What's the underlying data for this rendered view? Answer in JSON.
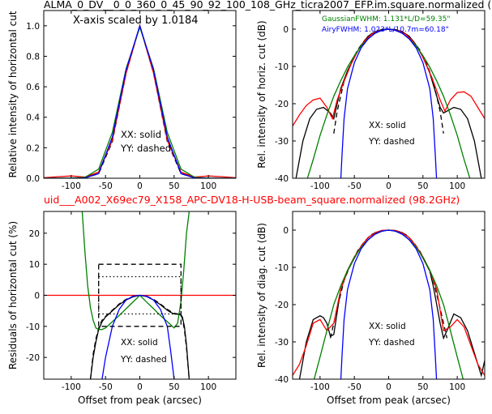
{
  "figure": {
    "title": "ALMA_0_DV__0_0_360_0_45_90_92_100_108_GHz_ticra2007_EFP.im.square.normalized (",
    "subtitle": "uid___A002_X69ec79_X158_APC-DV18-H-USB-beam_square.normalized (98.2GHz)",
    "subtitle_color": "#ff0000",
    "scale_note": "X-axis scaled by 1.0184",
    "fwhm_gaussian": "GaussianFWHM: 1.131*L/D=59.35\"",
    "fwhm_airy": "AiryFWHM: 1.023*L/10.7m=60.18\"",
    "legend_solid": "XX: solid",
    "legend_dashed": "YY: dashed"
  },
  "colors": {
    "measured": "#000000",
    "model": "#ff0000",
    "gaussian": "#008000",
    "airy": "#0000ff"
  },
  "chart_data": [
    {
      "type": "line",
      "panel": "top-left",
      "xlabel": "",
      "ylabel": "Relative intensity of horizontal cut",
      "xlim": [
        -140,
        140
      ],
      "ylim": [
        0,
        1.1
      ],
      "xticks": [
        -100,
        -50,
        0,
        50,
        100
      ],
      "yticks": [
        0.0,
        0.2,
        0.4,
        0.6,
        0.8,
        1.0
      ],
      "ytick_labels": [
        "0.0",
        "0.2",
        "0.4",
        "0.6",
        "0.8",
        "1.0"
      ],
      "series": [
        {
          "color": "black",
          "style": "solid",
          "x": [
            -140,
            -100,
            -80,
            -60,
            -40,
            -20,
            0,
            20,
            40,
            60,
            80,
            100,
            140
          ],
          "y": [
            0,
            0,
            0.003,
            0.04,
            0.26,
            0.7,
            1.0,
            0.7,
            0.26,
            0.04,
            0.003,
            0,
            0
          ]
        },
        {
          "color": "black",
          "style": "dashed",
          "x": [
            -140,
            -100,
            -80,
            -60,
            -40,
            -20,
            0,
            20,
            40,
            60,
            80,
            100,
            140
          ],
          "y": [
            0,
            0,
            0.003,
            0.03,
            0.24,
            0.69,
            1.0,
            0.69,
            0.24,
            0.03,
            0.003,
            0,
            0
          ]
        },
        {
          "color": "red",
          "style": "solid",
          "x": [
            -140,
            -120,
            -100,
            -80,
            -60,
            -40,
            -20,
            0,
            20,
            40,
            60,
            80,
            100,
            120,
            140
          ],
          "y": [
            0.003,
            0.01,
            0.015,
            0.008,
            0.04,
            0.25,
            0.69,
            1.0,
            0.69,
            0.25,
            0.04,
            0.008,
            0.015,
            0.01,
            0.003
          ]
        },
        {
          "color": "green",
          "style": "solid",
          "x": [
            -140,
            -100,
            -80,
            -60,
            -40,
            -20,
            0,
            20,
            40,
            60,
            80,
            100,
            140
          ],
          "y": [
            0,
            0.001,
            0.006,
            0.06,
            0.3,
            0.72,
            0.99,
            0.72,
            0.3,
            0.06,
            0.006,
            0.001,
            0
          ]
        },
        {
          "color": "blue",
          "style": "solid",
          "x": [
            -140,
            -100,
            -80,
            -60,
            -40,
            -20,
            0,
            20,
            40,
            60,
            80,
            100,
            140
          ],
          "y": [
            0,
            0,
            0.002,
            0.03,
            0.27,
            0.71,
            1.0,
            0.71,
            0.27,
            0.03,
            0.002,
            0,
            0
          ]
        }
      ]
    },
    {
      "type": "line",
      "panel": "top-right",
      "xlabel": "",
      "ylabel": "Rel. intensity of horiz. cut (dB)",
      "xlim": [
        -140,
        140
      ],
      "ylim": [
        -40,
        5
      ],
      "xticks": [
        -100,
        -50,
        0,
        50,
        100
      ],
      "yticks": [
        0,
        -10,
        -20,
        -30,
        -40
      ],
      "series": [
        {
          "color": "black",
          "style": "solid",
          "x": [
            -135,
            -125,
            -115,
            -105,
            -95,
            -85,
            -80,
            -75,
            -70,
            -60,
            -50,
            -40,
            -30,
            -20,
            -10,
            0,
            10,
            20,
            30,
            40,
            50,
            60,
            70,
            75,
            80,
            85,
            95,
            105,
            115,
            125,
            135
          ],
          "y": [
            -40,
            -30,
            -24,
            -21.5,
            -21,
            -22.5,
            -24,
            -20,
            -16,
            -11.2,
            -7.5,
            -4.3,
            -1.9,
            -0.7,
            -0.1,
            0,
            -0.1,
            -0.7,
            -1.9,
            -4.3,
            -7.5,
            -11.8,
            -18,
            -21,
            -22.5,
            -22,
            -21,
            -21.5,
            -24,
            -30,
            -40
          ]
        },
        {
          "color": "black",
          "style": "dashed",
          "x": [
            -80,
            -75,
            -65,
            -55,
            -45,
            -35,
            -25,
            -15,
            0,
            15,
            25,
            35,
            45,
            55,
            65,
            75,
            80
          ],
          "y": [
            -28,
            -22,
            -14,
            -9,
            -5.5,
            -3,
            -1.2,
            -0.4,
            0,
            -0.4,
            -1.2,
            -3,
            -5.5,
            -9,
            -14,
            -22,
            -28
          ]
        },
        {
          "color": "red",
          "style": "solid",
          "x": [
            -140,
            -130,
            -120,
            -110,
            -100,
            -90,
            -82,
            -75,
            -65,
            -55,
            -45,
            -35,
            -25,
            -15,
            0,
            15,
            25,
            35,
            45,
            55,
            65,
            75,
            82,
            90,
            100,
            110,
            120,
            130,
            140
          ],
          "y": [
            -26,
            -23,
            -20.5,
            -19,
            -18.5,
            -21,
            -24,
            -19,
            -14,
            -9.5,
            -5.8,
            -3.2,
            -1.4,
            -0.5,
            0,
            -0.5,
            -1.4,
            -3.2,
            -5.8,
            -9.5,
            -14,
            -19,
            -22,
            -19,
            -17,
            -16.8,
            -18,
            -21,
            -24
          ]
        },
        {
          "color": "green",
          "style": "solid",
          "x": [
            -120,
            -110,
            -100,
            -90,
            -80,
            -70,
            -60,
            -50,
            -40,
            -30,
            -20,
            -10,
            0,
            10,
            20,
            30,
            40,
            50,
            60,
            70,
            80,
            90,
            100,
            110,
            120
          ],
          "y": [
            -41,
            -35,
            -28.5,
            -23,
            -18,
            -13.9,
            -10.2,
            -7.1,
            -4.5,
            -2.6,
            -1.1,
            -0.3,
            0,
            -0.3,
            -1.1,
            -2.6,
            -4.5,
            -7.1,
            -10.2,
            -13.9,
            -18,
            -23,
            -28.5,
            -35,
            -41
          ]
        },
        {
          "color": "blue",
          "style": "solid",
          "x": [
            -70,
            -68,
            -65,
            -60,
            -50,
            -40,
            -30,
            -20,
            -10,
            0,
            10,
            20,
            30,
            40,
            50,
            60,
            65,
            68,
            70
          ],
          "y": [
            -41,
            -34,
            -24,
            -16,
            -9,
            -5,
            -2.6,
            -1.1,
            -0.3,
            0,
            -0.3,
            -1.1,
            -2.6,
            -5,
            -9,
            -16,
            -24,
            -34,
            -41
          ]
        }
      ]
    },
    {
      "type": "line",
      "panel": "bottom-left",
      "xlabel": "Offset from peak (arcsec)",
      "ylabel": "Residuals of horizontal cut (%)",
      "xlim": [
        -140,
        140
      ],
      "ylim": [
        -27,
        27
      ],
      "xticks": [
        -100,
        -50,
        0,
        50,
        100
      ],
      "yticks": [
        20,
        10,
        0,
        -10,
        -20
      ],
      "series": [
        {
          "color": "black",
          "style": "solid",
          "x": [
            -72,
            -68,
            -64,
            -60,
            -55,
            -50,
            -40,
            -30,
            -20,
            -10,
            0,
            10,
            20,
            30,
            40,
            45,
            50,
            55,
            60,
            62,
            65,
            68,
            72
          ],
          "y": [
            -27,
            -20,
            -15,
            -11,
            -8.5,
            -7,
            -5,
            -3,
            -1.5,
            -0.5,
            0,
            -0.4,
            -1.5,
            -3,
            -4.8,
            -5.5,
            -6,
            -6.1,
            -6.3,
            -7,
            -10,
            -16,
            -27
          ]
        },
        {
          "color": "black",
          "style": "dashed",
          "x": [
            -72,
            -68,
            -64,
            -60,
            -55,
            -50,
            -40,
            -30,
            -20,
            -10,
            0,
            10,
            20,
            30,
            40,
            45,
            50,
            55,
            60,
            62,
            65,
            68,
            72
          ],
          "y": [
            -27,
            -19,
            -14,
            -10.5,
            -8,
            -6.8,
            -4.8,
            -2.8,
            -1.3,
            -0.4,
            0,
            -0.3,
            -1.3,
            -2.8,
            -4.5,
            -5.2,
            -5.8,
            -6,
            -6.3,
            -7.5,
            -11,
            -17,
            -27
          ]
        },
        {
          "color": "red",
          "style": "solid",
          "x": [
            -140,
            140
          ],
          "y": [
            0,
            0
          ]
        },
        {
          "color": "green",
          "style": "solid",
          "x": [
            -84,
            -80,
            -76,
            -72,
            -68,
            -64,
            -60,
            -55,
            -50,
            -45,
            -40,
            -30,
            -20,
            -10,
            0,
            10,
            20,
            30,
            40,
            45,
            50,
            55,
            60,
            64,
            68,
            72
          ],
          "y": [
            27,
            14,
            3,
            -4,
            -8,
            -10.5,
            -11,
            -11,
            -10.5,
            -9.5,
            -8.5,
            -6.5,
            -4.3,
            -2.2,
            0,
            -2.2,
            -4.3,
            -6.5,
            -8.5,
            -9.5,
            -10.5,
            -9,
            -2,
            8,
            20,
            27
          ]
        },
        {
          "color": "blue",
          "style": "solid",
          "x": [
            -55,
            -50,
            -40,
            -30,
            -20,
            -10,
            0,
            10,
            20,
            30,
            40,
            45,
            50
          ],
          "y": [
            -27,
            -20,
            -10,
            -4.5,
            -1.5,
            -0.3,
            0,
            -0.3,
            -1.5,
            -4.5,
            -10,
            -18,
            -27
          ]
        },
        {
          "color": "black",
          "style": "dashed_box",
          "x": [
            -60,
            60,
            60,
            -60,
            -60
          ],
          "y": [
            10,
            10,
            -10,
            -10,
            10
          ]
        },
        {
          "color": "black",
          "style": "dotted_box",
          "x": [
            -60,
            60,
            60,
            -60,
            -60
          ],
          "y": [
            6,
            6,
            -6,
            -6,
            6
          ]
        }
      ]
    },
    {
      "type": "line",
      "panel": "bottom-right",
      "xlabel": "Offset from peak (arcsec)",
      "ylabel": "Rel. intensity of diag. cut (dB)",
      "xlim": [
        -140,
        140
      ],
      "ylim": [
        -40,
        5
      ],
      "xticks": [
        -100,
        -50,
        0,
        50,
        100
      ],
      "yticks": [
        0,
        -10,
        -20,
        -30,
        -40
      ],
      "series": [
        {
          "color": "black",
          "style": "solid",
          "x": [
            -130,
            -120,
            -110,
            -100,
            -95,
            -90,
            -85,
            -80,
            -75,
            -70,
            -60,
            -50,
            -40,
            -30,
            -20,
            -10,
            0,
            10,
            20,
            30,
            40,
            50,
            60,
            65,
            70,
            75,
            80,
            85,
            95,
            105,
            115,
            125,
            135,
            140
          ],
          "y": [
            -40,
            -30,
            -24,
            -23,
            -23.5,
            -25,
            -28.5,
            -28,
            -22,
            -16,
            -11,
            -7.5,
            -4.4,
            -2,
            -0.7,
            -0.1,
            0,
            -0.1,
            -0.7,
            -2,
            -4.4,
            -7.5,
            -11,
            -15,
            -20,
            -25,
            -29,
            -27,
            -22.5,
            -23.5,
            -27,
            -33,
            -39,
            -35
          ]
        },
        {
          "color": "black",
          "style": "dashed",
          "x": [
            -85,
            -75,
            -65,
            -55,
            -45,
            -35,
            -25,
            -15,
            0,
            15,
            25,
            35,
            45,
            55,
            65,
            75,
            85
          ],
          "y": [
            -29,
            -21,
            -13.5,
            -9,
            -5.5,
            -3,
            -1.2,
            -0.4,
            0,
            -0.4,
            -1.2,
            -3,
            -5.5,
            -9,
            -13.5,
            -21,
            -29
          ]
        },
        {
          "color": "red",
          "style": "solid",
          "x": [
            -140,
            -130,
            -120,
            -110,
            -100,
            -90,
            -80,
            -70,
            -60,
            -50,
            -40,
            -30,
            -20,
            -10,
            0,
            10,
            20,
            30,
            40,
            50,
            60,
            70,
            80,
            90,
            100,
            110,
            120,
            130,
            140
          ],
          "y": [
            -39,
            -36,
            -31,
            -25,
            -24,
            -27,
            -25,
            -16,
            -10.8,
            -7.2,
            -4.3,
            -2,
            -0.8,
            -0.1,
            0,
            -0.1,
            -0.8,
            -2,
            -4.3,
            -7.2,
            -10.8,
            -16,
            -27,
            -26,
            -24,
            -26,
            -31,
            -36,
            -39
          ]
        },
        {
          "color": "green",
          "style": "solid",
          "x": [
            -110,
            -100,
            -90,
            -80,
            -70,
            -60,
            -50,
            -40,
            -30,
            -20,
            -10,
            0,
            10,
            20,
            30,
            40,
            50,
            60,
            70,
            80,
            90,
            100,
            110
          ],
          "y": [
            -41,
            -34,
            -27,
            -20,
            -15,
            -10.8,
            -7.3,
            -4.6,
            -2.6,
            -1.1,
            -0.3,
            0,
            -0.3,
            -1.1,
            -2.6,
            -4.6,
            -7.3,
            -10.8,
            -15,
            -20,
            -27,
            -34,
            -41
          ]
        },
        {
          "color": "blue",
          "style": "solid",
          "x": [
            -70,
            -68,
            -65,
            -60,
            -50,
            -40,
            -30,
            -20,
            -10,
            0,
            10,
            20,
            30,
            40,
            50,
            60,
            65,
            68,
            70
          ],
          "y": [
            -41,
            -34,
            -24,
            -16,
            -9,
            -5,
            -2.6,
            -1.1,
            -0.3,
            0,
            -0.3,
            -1.1,
            -2.6,
            -5,
            -9,
            -16,
            -24,
            -34,
            -41
          ]
        }
      ]
    }
  ]
}
